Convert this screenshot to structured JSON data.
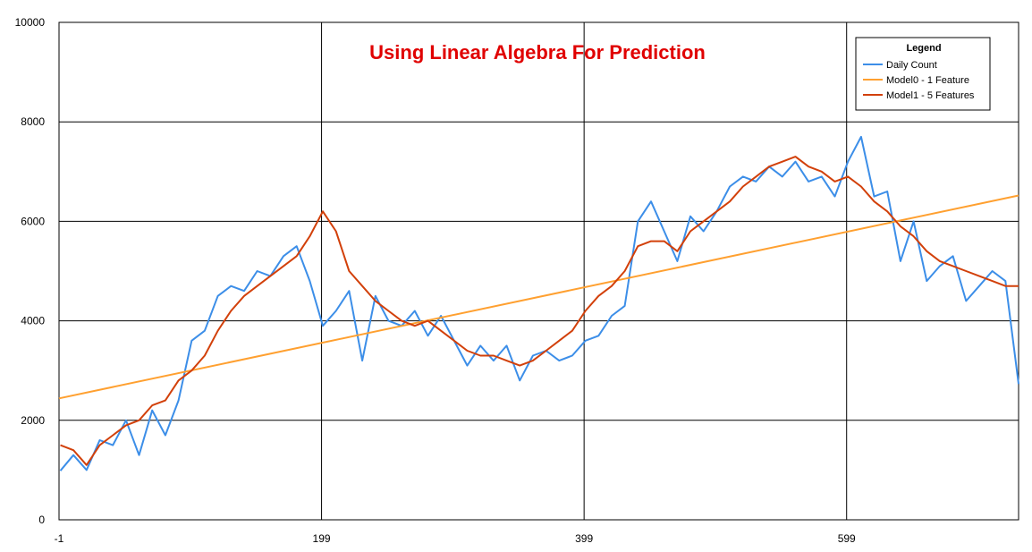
{
  "chart_data": {
    "type": "line",
    "title": "Using Linear Algebra For Prediction",
    "xlabel": "",
    "ylabel": "",
    "xlim": [
      -1,
      730
    ],
    "ylim": [
      0,
      10000
    ],
    "x_ticks": [
      "-1",
      "199",
      "399",
      "599"
    ],
    "y_ticks": [
      "0",
      "2000",
      "4000",
      "6000",
      "8000",
      "10000"
    ],
    "grid": true,
    "legend": {
      "title": "Legend",
      "placement": "top-right",
      "entries": [
        "Daily Count",
        "Model0 - 1 Feature",
        "Model1 - 5 Features"
      ]
    },
    "series": [
      {
        "name": "Daily Count",
        "color": "#3c8ee8",
        "x": [
          0,
          10,
          20,
          30,
          40,
          50,
          60,
          70,
          80,
          90,
          100,
          110,
          120,
          130,
          140,
          150,
          160,
          170,
          180,
          190,
          200,
          210,
          220,
          230,
          240,
          250,
          260,
          270,
          280,
          290,
          300,
          310,
          320,
          330,
          340,
          350,
          360,
          370,
          380,
          390,
          400,
          410,
          420,
          430,
          440,
          450,
          460,
          470,
          480,
          490,
          500,
          510,
          520,
          530,
          540,
          550,
          560,
          570,
          580,
          590,
          600,
          610,
          620,
          630,
          640,
          650,
          660,
          670,
          680,
          690,
          700,
          710,
          720,
          730
        ],
        "values": [
          985,
          1300,
          1000,
          1600,
          1500,
          2000,
          1300,
          2200,
          1700,
          2400,
          3600,
          3800,
          4500,
          4700,
          4600,
          5000,
          4900,
          5300,
          5500,
          4800,
          3900,
          4200,
          4600,
          3200,
          4500,
          4000,
          3900,
          4200,
          3700,
          4100,
          3600,
          3100,
          3500,
          3200,
          3500,
          2800,
          3300,
          3400,
          3200,
          3300,
          3600,
          3700,
          4100,
          4300,
          6000,
          6400,
          5800,
          5200,
          6100,
          5800,
          6200,
          6700,
          6900,
          6800,
          7100,
          6900,
          7200,
          6800,
          6900,
          6500,
          7200,
          7700,
          6500,
          6600,
          5200,
          6000,
          4800,
          5100,
          5300,
          4400,
          4700,
          5000,
          4800,
          2729
        ]
      },
      {
        "name": "Model0 - 1 Feature",
        "color": "#ffa030",
        "x": [
          -1,
          730
        ],
        "values": [
          2440,
          6520
        ]
      },
      {
        "name": "Model1 - 5 Features",
        "color": "#d2400a",
        "x": [
          0,
          10,
          20,
          30,
          40,
          50,
          60,
          70,
          80,
          90,
          100,
          110,
          120,
          130,
          140,
          150,
          160,
          170,
          180,
          190,
          200,
          210,
          220,
          230,
          240,
          250,
          260,
          270,
          280,
          290,
          300,
          310,
          320,
          330,
          340,
          350,
          360,
          370,
          380,
          390,
          400,
          410,
          420,
          430,
          440,
          450,
          460,
          470,
          480,
          490,
          500,
          510,
          520,
          530,
          540,
          550,
          560,
          570,
          580,
          590,
          600,
          610,
          620,
          630,
          640,
          650,
          660,
          670,
          680,
          690,
          700,
          710,
          720,
          730
        ],
        "values": [
          1500,
          1400,
          1100,
          1500,
          1700,
          1900,
          2000,
          2300,
          2400,
          2800,
          3000,
          3300,
          3800,
          4200,
          4500,
          4700,
          4900,
          5100,
          5300,
          5700,
          6200,
          5800,
          5000,
          4700,
          4400,
          4200,
          4000,
          3900,
          4000,
          3800,
          3600,
          3400,
          3300,
          3300,
          3200,
          3100,
          3200,
          3400,
          3600,
          3800,
          4200,
          4500,
          4700,
          5000,
          5500,
          5600,
          5600,
          5400,
          5800,
          6000,
          6200,
          6400,
          6700,
          6900,
          7100,
          7200,
          7300,
          7100,
          7000,
          6800,
          6900,
          6700,
          6400,
          6200,
          5900,
          5700,
          5400,
          5200,
          5100,
          5000,
          4900,
          4800,
          4700,
          4700
        ]
      }
    ]
  }
}
